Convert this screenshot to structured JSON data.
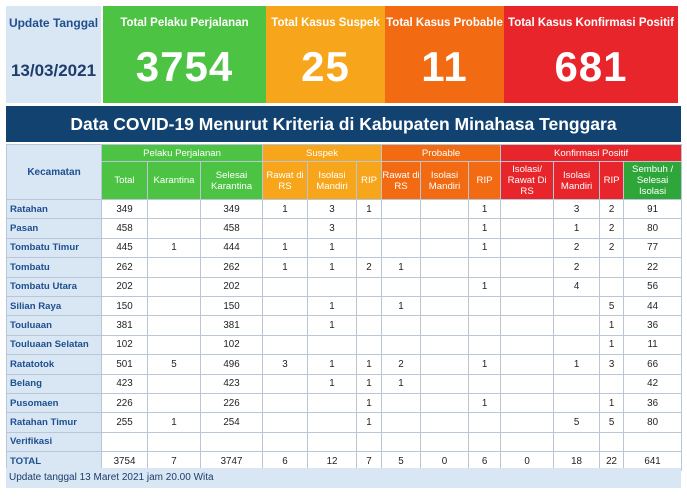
{
  "summary": {
    "update_label": "Update Tanggal",
    "update_date": "13/03/2021",
    "cards": [
      {
        "label": "Total Pelaku Perjalanan",
        "value": "3754"
      },
      {
        "label": "Total Kasus Suspek",
        "value": "25"
      },
      {
        "label": "Total Kasus Probable",
        "value": "11"
      },
      {
        "label": "Total Kasus Konfirmasi Positif",
        "value": "681"
      }
    ]
  },
  "banner": "Data COVID-19 Menurut Kriteria di Kabupaten Minahasa Tenggara",
  "table": {
    "kecamatan_header": "Kecamatan",
    "groups": {
      "pelaku": "Pelaku Perjalanan",
      "suspek": "Suspek",
      "probable": "Probable",
      "konfirmasi": "Konfirmasi Positif"
    },
    "columns": [
      "Total",
      "Karantina",
      "Selesai Karantina",
      "Rawat di RS",
      "Isolasi Mandiri",
      "RIP",
      "Rawat di RS",
      "Isolasi Mandiri",
      "RIP",
      "Isolasi/ Rawat Di RS",
      "Isolasi Mandiri",
      "RIP",
      "Sembuh / Selesai Isolasi"
    ],
    "rows": [
      {
        "name": "Ratahan",
        "v": [
          "349",
          "",
          "349",
          "1",
          "3",
          "1",
          "",
          "",
          "1",
          "",
          "3",
          "2",
          "91"
        ]
      },
      {
        "name": "Pasan",
        "v": [
          "458",
          "",
          "458",
          "",
          "3",
          "",
          "",
          "",
          "1",
          "",
          "1",
          "2",
          "80"
        ]
      },
      {
        "name": "Tombatu Timur",
        "v": [
          "445",
          "1",
          "444",
          "1",
          "1",
          "",
          "",
          "",
          "1",
          "",
          "2",
          "2",
          "77"
        ]
      },
      {
        "name": "Tombatu",
        "v": [
          "262",
          "",
          "262",
          "1",
          "1",
          "2",
          "1",
          "",
          "",
          "",
          "2",
          "",
          "22"
        ]
      },
      {
        "name": "Tombatu Utara",
        "v": [
          "202",
          "",
          "202",
          "",
          "",
          "",
          "",
          "",
          "1",
          "",
          "4",
          "",
          "56"
        ]
      },
      {
        "name": "Silian Raya",
        "v": [
          "150",
          "",
          "150",
          "",
          "1",
          "",
          "1",
          "",
          "",
          "",
          "",
          "5",
          "44"
        ]
      },
      {
        "name": "Touluaan",
        "v": [
          "381",
          "",
          "381",
          "",
          "1",
          "",
          "",
          "",
          "",
          "",
          "",
          "1",
          "36"
        ]
      },
      {
        "name": "Touluaan Selatan",
        "v": [
          "102",
          "",
          "102",
          "",
          "",
          "",
          "",
          "",
          "",
          "",
          "",
          "1",
          "11"
        ]
      },
      {
        "name": "Ratatotok",
        "v": [
          "501",
          "5",
          "496",
          "3",
          "1",
          "1",
          "2",
          "",
          "1",
          "",
          "1",
          "3",
          "66"
        ]
      },
      {
        "name": "Belang",
        "v": [
          "423",
          "",
          "423",
          "",
          "1",
          "1",
          "1",
          "",
          "",
          "",
          "",
          "",
          "42"
        ]
      },
      {
        "name": "Pusomaen",
        "v": [
          "226",
          "",
          "226",
          "",
          "",
          "1",
          "",
          "",
          "1",
          "",
          "",
          "1",
          "36"
        ]
      },
      {
        "name": "Ratahan Timur",
        "v": [
          "255",
          "1",
          "254",
          "",
          "",
          "1",
          "",
          "",
          "",
          "",
          "5",
          "5",
          "80"
        ]
      },
      {
        "name": "Verifikasi",
        "v": [
          "",
          "",
          "",
          "",
          "",
          "",
          "",
          "",
          "",
          "",
          "",
          "",
          ""
        ]
      },
      {
        "name": "TOTAL",
        "v": [
          "3754",
          "7",
          "3747",
          "6",
          "12",
          "7",
          "5",
          "0",
          "6",
          "0",
          "18",
          "22",
          "641"
        ]
      }
    ]
  },
  "footer": "Update tanggal 13 Maret 2021 jam 20.00 Wita",
  "colors": {
    "green": "#4cc343",
    "yellow": "#f7a61b",
    "orange": "#f26a12",
    "red": "#e8252a",
    "navy": "#12426f",
    "light_blue": "#d9e6f4"
  }
}
